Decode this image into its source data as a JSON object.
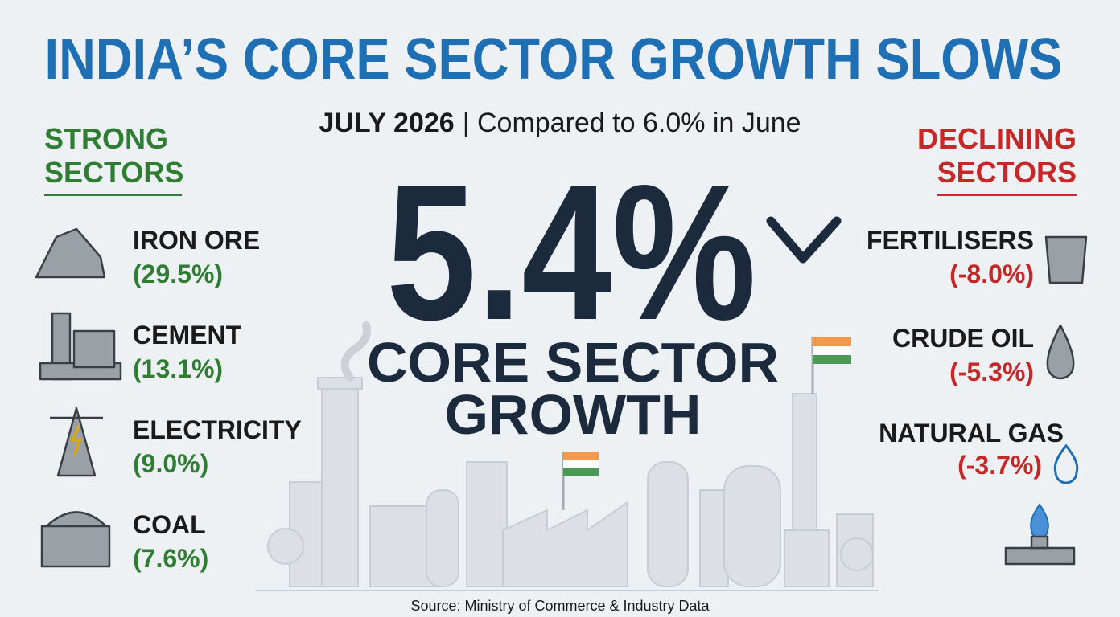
{
  "title": "INDIA’S CORE SECTOR GROWTH SLOWS",
  "subtitle": {
    "period": "JULY 2026",
    "comparison": "| Compared to 6.0% in June"
  },
  "headline": {
    "value": "5.4%",
    "label_lines": [
      "CORE SECTOR",
      "GROWTH"
    ]
  },
  "strong_sectors": {
    "heading_lines": [
      "STRONG",
      "SECTORS"
    ],
    "items": [
      {
        "name": "IRON ORE",
        "value": "(29.5%)"
      },
      {
        "name": "CEMENT",
        "value": "(13.1%)"
      },
      {
        "name": "ELECTRICITY",
        "value": "(9.0%)"
      },
      {
        "name": "COAL",
        "value": "(7.6%)"
      }
    ]
  },
  "declining_sectors": {
    "heading_lines": [
      "DECLINING",
      "SECTORS"
    ],
    "items": [
      {
        "name": "FERTILISERS",
        "value": "(-8.0%)"
      },
      {
        "name": "CRUDE OIL",
        "value": "(-5.3%)"
      },
      {
        "name": "NATURAL GAS",
        "value": "(-3.7%)"
      }
    ]
  },
  "source": "Source: Ministry of Commerce & Industry Data"
}
